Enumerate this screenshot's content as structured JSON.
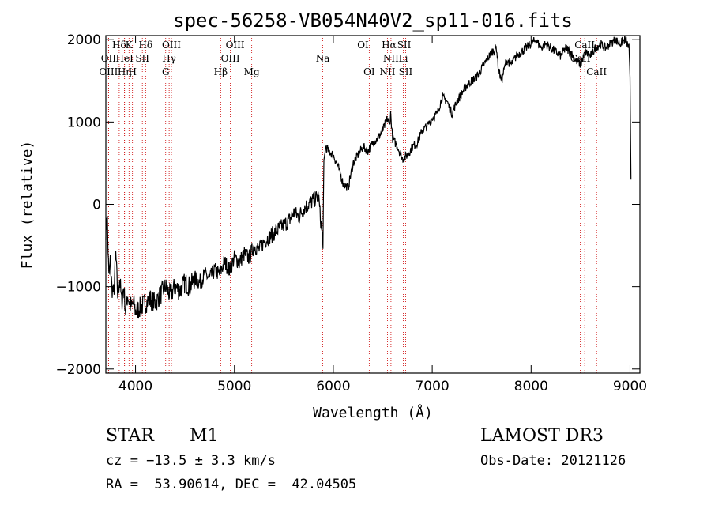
{
  "chart_data": {
    "type": "line",
    "title": "spec-56258-VB054N40V2_sp11-016.fits",
    "xlabel": "Wavelength (Å)",
    "ylabel": "Flux (relative)",
    "xlim": [
      3700,
      9100
    ],
    "ylim": [
      -2050,
      2050
    ],
    "xticks": [
      4000,
      5000,
      6000,
      7000,
      8000,
      9000
    ],
    "yticks": [
      -2000,
      -1000,
      0,
      1000,
      2000
    ],
    "xtick_labels": [
      "4000",
      "5000",
      "6000",
      "7000",
      "8000",
      "9000"
    ],
    "ytick_labels": [
      "−2000",
      "−1000",
      "0",
      "1000",
      "2000"
    ],
    "series": [
      {
        "name": "flux",
        "x": [
          3700,
          3715,
          3730,
          3745,
          3760,
          3780,
          3800,
          3820,
          3840,
          3860,
          3880,
          3900,
          3920,
          3940,
          3960,
          3980,
          4000,
          4050,
          4100,
          4150,
          4200,
          4250,
          4300,
          4350,
          4400,
          4450,
          4500,
          4550,
          4600,
          4650,
          4700,
          4750,
          4800,
          4850,
          4900,
          4950,
          5000,
          5050,
          5100,
          5150,
          5200,
          5250,
          5300,
          5350,
          5400,
          5450,
          5500,
          5550,
          5600,
          5650,
          5700,
          5750,
          5800,
          5850,
          5880,
          5895,
          5905,
          5920,
          5950,
          6000,
          6050,
          6100,
          6150,
          6200,
          6250,
          6300,
          6350,
          6400,
          6450,
          6500,
          6550,
          6565,
          6580,
          6600,
          6650,
          6700,
          6750,
          6800,
          6850,
          6900,
          6950,
          7000,
          7050,
          7100,
          7150,
          7200,
          7250,
          7300,
          7350,
          7400,
          7450,
          7500,
          7550,
          7600,
          7650,
          7670,
          7700,
          7750,
          7800,
          7850,
          7900,
          7950,
          8000,
          8050,
          8100,
          8150,
          8200,
          8250,
          8300,
          8350,
          8400,
          8450,
          8500,
          8550,
          8600,
          8650,
          8700,
          8750,
          8800,
          8850,
          8900,
          8950,
          8990,
          9000,
          9010
        ],
        "y": [
          -300,
          -200,
          -900,
          -700,
          -1000,
          -1100,
          -600,
          -1100,
          -900,
          -1200,
          -1000,
          -1300,
          -1100,
          -1200,
          -1250,
          -1200,
          -1300,
          -1250,
          -1200,
          -1150,
          -1200,
          -1100,
          -1000,
          -1100,
          -1000,
          -1050,
          -950,
          -1000,
          -900,
          -950,
          -850,
          -900,
          -800,
          -850,
          -700,
          -800,
          -650,
          -700,
          -600,
          -650,
          -500,
          -550,
          -450,
          -400,
          -350,
          -300,
          -250,
          -200,
          -100,
          -150,
          -50,
          0,
          50,
          100,
          -300,
          -450,
          500,
          700,
          650,
          600,
          450,
          250,
          200,
          500,
          600,
          700,
          650,
          750,
          800,
          900,
          1050,
          950,
          1100,
          800,
          700,
          550,
          600,
          700,
          750,
          900,
          950,
          1050,
          1100,
          1300,
          1250,
          1100,
          1250,
          1350,
          1450,
          1500,
          1550,
          1650,
          1750,
          1850,
          1900,
          1650,
          1500,
          1750,
          1700,
          1800,
          1850,
          1900,
          1950,
          2000,
          1900,
          1950,
          1900,
          1850,
          1800,
          1900,
          1850,
          1750,
          1700,
          1850,
          1800,
          1900,
          1950,
          1900,
          1950,
          2000,
          1950,
          2000,
          1900,
          1500,
          300
        ]
      }
    ],
    "spectral_lines": [
      {
        "label": "Hδ",
        "wavelength": 3835,
        "row": 1
      },
      {
        "label": "OII",
        "wavelength": 3727,
        "row": 2
      },
      {
        "label": "OIII",
        "wavelength": 3727,
        "row": 3
      },
      {
        "label": "K",
        "wavelength": 3934,
        "row": 1
      },
      {
        "label": "HeI",
        "wavelength": 3889,
        "row": 2
      },
      {
        "label": "Hη",
        "wavelength": 3889,
        "row": 3
      },
      {
        "label": "Hδ",
        "wavelength": 4102,
        "row": 1
      },
      {
        "label": "SII",
        "wavelength": 4069,
        "row": 2
      },
      {
        "label": "H",
        "wavelength": 3969,
        "row": 3
      },
      {
        "label": "OIII",
        "wavelength": 4363,
        "row": 1
      },
      {
        "label": "Hγ",
        "wavelength": 4340,
        "row": 2
      },
      {
        "label": "G",
        "wavelength": 4305,
        "row": 3
      },
      {
        "label": "OIII",
        "wavelength": 5007,
        "row": 1
      },
      {
        "label": "OIII",
        "wavelength": 4959,
        "row": 2
      },
      {
        "label": "Hβ",
        "wavelength": 4861,
        "row": 3
      },
      {
        "label": "Mg",
        "wavelength": 5175,
        "row": 3
      },
      {
        "label": "Na",
        "wavelength": 5893,
        "row": 2
      },
      {
        "label": "OI",
        "wavelength": 6300,
        "row": 1
      },
      {
        "label": "OI",
        "wavelength": 6363,
        "row": 3
      },
      {
        "label": "Hα",
        "wavelength": 6563,
        "row": 1
      },
      {
        "label": "SII",
        "wavelength": 6716,
        "row": 1
      },
      {
        "label": "NII",
        "wavelength": 6583,
        "row": 2
      },
      {
        "label": "Li",
        "wavelength": 6708,
        "row": 2
      },
      {
        "label": "NII",
        "wavelength": 6548,
        "row": 3
      },
      {
        "label": "SII",
        "wavelength": 6731,
        "row": 3
      },
      {
        "label": "CaII",
        "wavelength": 8542,
        "row": 1
      },
      {
        "label": "CaII",
        "wavelength": 8498,
        "row": 2
      },
      {
        "label": "CaII",
        "wavelength": 8662,
        "row": 3
      }
    ],
    "colors": {
      "spectrum": "#000000",
      "line_markers": "#cc0000"
    }
  },
  "info": {
    "object_class": "STAR",
    "subclass": "M1",
    "survey": "LAMOST DR3",
    "cz": "cz = −13.5 ± 3.3 km/s",
    "obs_date": "Obs-Date: 20121126",
    "coords": "RA =  53.90614, DEC =  42.04505"
  }
}
